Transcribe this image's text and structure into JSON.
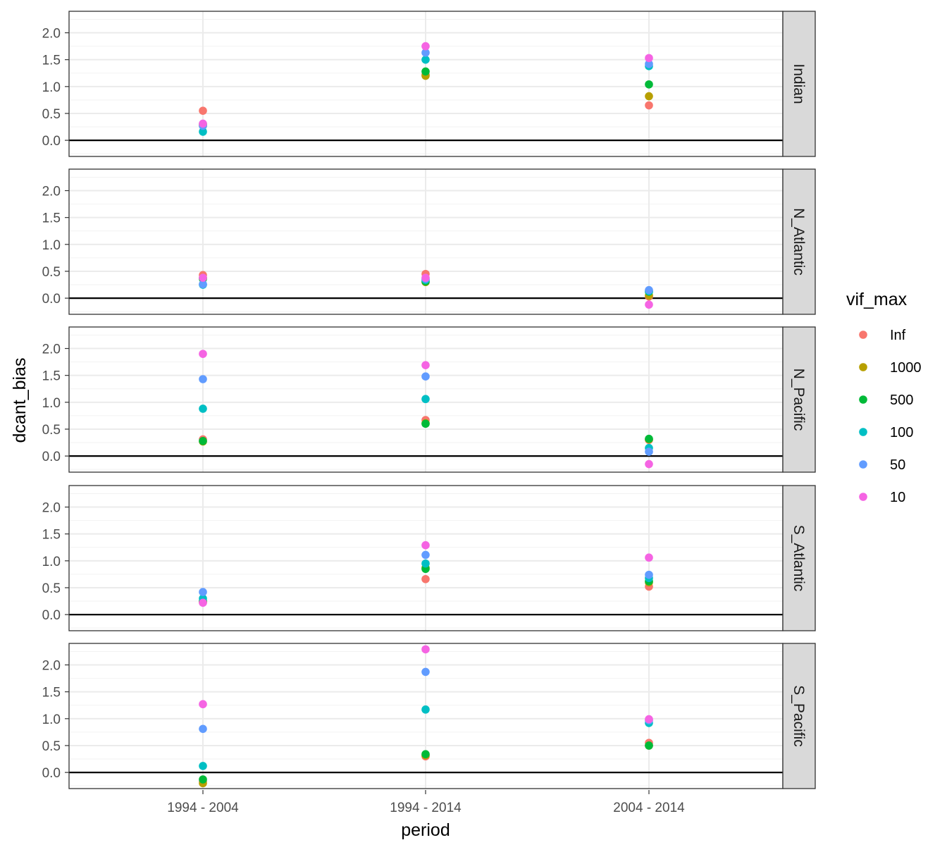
{
  "chart_data": {
    "type": "scatter",
    "xlabel": "period",
    "ylabel": "dcant_bias",
    "x_categories": [
      "1994 - 2004",
      "1994 - 2014",
      "2004 - 2014"
    ],
    "ylim": [
      -0.3,
      2.4
    ],
    "y_ticks": [
      "0.0",
      "0.5",
      "1.0",
      "1.5",
      "2.0"
    ],
    "grid": true,
    "reference_line": 0,
    "legend": {
      "title": "vif_max",
      "position": "right",
      "entries": [
        "Inf",
        "1000",
        "500",
        "100",
        "50",
        "10"
      ],
      "colors": [
        "#F8766D",
        "#B79F00",
        "#00BA38",
        "#00BFC4",
        "#619CFF",
        "#F564E3"
      ]
    },
    "facets": [
      {
        "label": "Indian",
        "series": [
          {
            "name": "Inf",
            "values": [
              0.55,
              1.22,
              0.65
            ]
          },
          {
            "name": "1000",
            "values": [
              0.27,
              1.2,
              0.82
            ]
          },
          {
            "name": "500",
            "values": [
              0.3,
              1.28,
              1.04
            ]
          },
          {
            "name": "100",
            "values": [
              0.16,
              1.5,
              1.38
            ]
          },
          {
            "name": "50",
            "values": [
              0.27,
              1.63,
              1.42
            ]
          },
          {
            "name": "10",
            "values": [
              0.31,
              1.75,
              1.53
            ]
          }
        ]
      },
      {
        "label": "N_Atlantic",
        "series": [
          {
            "name": "Inf",
            "values": [
              0.43,
              0.45,
              0.03
            ]
          },
          {
            "name": "1000",
            "values": [
              0.38,
              0.3,
              0.05
            ]
          },
          {
            "name": "500",
            "values": [
              0.36,
              0.31,
              0.12
            ]
          },
          {
            "name": "100",
            "values": [
              0.25,
              0.34,
              0.13
            ]
          },
          {
            "name": "50",
            "values": [
              0.26,
              0.36,
              0.15
            ]
          },
          {
            "name": "10",
            "values": [
              0.38,
              0.38,
              -0.12
            ]
          }
        ]
      },
      {
        "label": "N_Pacific",
        "series": [
          {
            "name": "Inf",
            "values": [
              0.31,
              0.67,
              0.3
            ]
          },
          {
            "name": "1000",
            "values": [
              0.27,
              0.61,
              0.31
            ]
          },
          {
            "name": "500",
            "values": [
              0.28,
              0.6,
              0.32
            ]
          },
          {
            "name": "100",
            "values": [
              0.88,
              1.06,
              0.15
            ]
          },
          {
            "name": "50",
            "values": [
              1.43,
              1.48,
              0.08
            ]
          },
          {
            "name": "10",
            "values": [
              1.9,
              1.69,
              -0.15
            ]
          }
        ]
      },
      {
        "label": "S_Atlantic",
        "series": [
          {
            "name": "Inf",
            "values": [
              0.24,
              0.66,
              0.52
            ]
          },
          {
            "name": "1000",
            "values": [
              0.23,
              0.87,
              0.6
            ]
          },
          {
            "name": "500",
            "values": [
              0.25,
              0.85,
              0.62
            ]
          },
          {
            "name": "100",
            "values": [
              0.3,
              0.95,
              0.68
            ]
          },
          {
            "name": "50",
            "values": [
              0.42,
              1.11,
              0.74
            ]
          },
          {
            "name": "10",
            "values": [
              0.22,
              1.29,
              1.06
            ]
          }
        ]
      },
      {
        "label": "S_Pacific",
        "series": [
          {
            "name": "Inf",
            "values": [
              -0.16,
              0.3,
              0.55
            ]
          },
          {
            "name": "1000",
            "values": [
              -0.2,
              0.32,
              0.5
            ]
          },
          {
            "name": "500",
            "values": [
              -0.13,
              0.34,
              0.5
            ]
          },
          {
            "name": "100",
            "values": [
              0.12,
              1.17,
              0.92
            ]
          },
          {
            "name": "50",
            "values": [
              0.81,
              1.87,
              0.97
            ]
          },
          {
            "name": "10",
            "values": [
              1.27,
              2.29,
              0.99
            ]
          }
        ]
      }
    ]
  }
}
